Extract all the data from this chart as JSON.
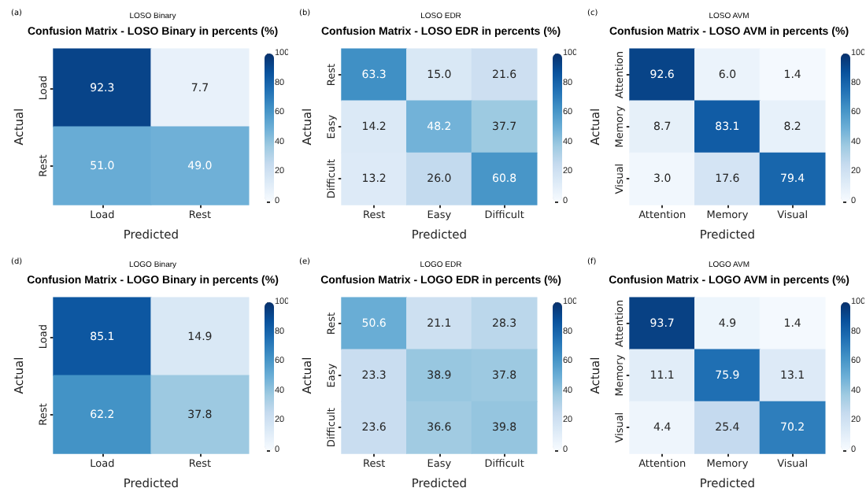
{
  "chart_data": [
    {
      "type": "heatmap",
      "title": "Confusion Matrix - LOSO Binary in percents (%)",
      "subtitle": "LOSO Binary",
      "annotations": [
        "(a)"
      ],
      "xlabel": "Predicted",
      "ylabel": "Actual",
      "categories": [
        "Load",
        "Rest"
      ],
      "y_categories": [
        "Load",
        "Rest"
      ],
      "cells": [
        [
          92.3,
          7.7
        ],
        [
          51.0,
          49.0
        ]
      ],
      "cell_labels": [
        [
          "92.3",
          "7.7"
        ],
        [
          "51.0",
          "49.0"
        ]
      ],
      "data_labels": true,
      "clim": [
        0,
        100
      ],
      "cticks": [
        0,
        20,
        40,
        60,
        80,
        100
      ],
      "grid": false
    },
    {
      "type": "heatmap",
      "title": "Confusion Matrix - LOSO EDR in percents (%)",
      "subtitle": "LOSO EDR",
      "annotations": [
        "(b)"
      ],
      "xlabel": "Predicted",
      "ylabel": "Actual",
      "categories": [
        "Rest",
        "Easy",
        "Difficult"
      ],
      "y_categories": [
        "Rest",
        "Easy",
        "Difficult"
      ],
      "cells": [
        [
          63.3,
          15.0,
          21.6
        ],
        [
          14.2,
          48.2,
          37.7
        ],
        [
          13.2,
          26.0,
          60.8
        ]
      ],
      "cell_labels": [
        [
          "63.3",
          "15.0",
          "21.6"
        ],
        [
          "14.2",
          "48.2",
          "37.7"
        ],
        [
          "13.2",
          "26.0",
          "60.8"
        ]
      ],
      "data_labels": true,
      "clim": [
        0,
        100
      ],
      "cticks": [
        0,
        20,
        40,
        60,
        80,
        100
      ],
      "grid": false
    },
    {
      "type": "heatmap",
      "title": "Confusion Matrix - LOSO AVM in percents (%)",
      "subtitle": "LOSO AVM",
      "annotations": [
        "(c)"
      ],
      "xlabel": "Predicted",
      "ylabel": "Actual",
      "categories": [
        "Attention",
        "Memory",
        "Visual"
      ],
      "y_categories": [
        "Attention",
        "Memory",
        "Visual"
      ],
      "cells": [
        [
          92.6,
          6.0,
          1.4
        ],
        [
          8.7,
          83.1,
          8.2
        ],
        [
          3.0,
          17.6,
          79.4
        ]
      ],
      "cell_labels": [
        [
          "92.6",
          "6.0",
          "1.4"
        ],
        [
          "8.7",
          "83.1",
          "8.2"
        ],
        [
          "3.0",
          "17.6",
          "79.4"
        ]
      ],
      "data_labels": true,
      "clim": [
        0,
        100
      ],
      "cticks": [
        0,
        20,
        40,
        60,
        80,
        100
      ],
      "grid": false
    },
    {
      "type": "heatmap",
      "title": "Confusion Matrix - LOGO Binary in percents (%)",
      "subtitle": "LOGO Binary",
      "annotations": [
        "(d)"
      ],
      "xlabel": "Predicted",
      "ylabel": "Actual",
      "categories": [
        "Load",
        "Rest"
      ],
      "y_categories": [
        "Load",
        "Rest"
      ],
      "cells": [
        [
          85.1,
          14.9
        ],
        [
          62.2,
          37.8
        ]
      ],
      "cell_labels": [
        [
          "85.1",
          "14.9"
        ],
        [
          "62.2",
          "37.8"
        ]
      ],
      "data_labels": true,
      "clim": [
        0,
        100
      ],
      "cticks": [
        0,
        20,
        40,
        60,
        80,
        100
      ],
      "grid": false
    },
    {
      "type": "heatmap",
      "title": "Confusion Matrix - LOGO EDR in percents (%)",
      "subtitle": "LOGO EDR",
      "annotations": [
        "(e)"
      ],
      "xlabel": "Predicted",
      "ylabel": "Actual",
      "categories": [
        "Rest",
        "Easy",
        "Difficult"
      ],
      "y_categories": [
        "Rest",
        "Easy",
        "Difficult"
      ],
      "cells": [
        [
          50.6,
          21.1,
          28.3
        ],
        [
          23.3,
          38.9,
          37.8
        ],
        [
          23.6,
          36.6,
          39.8
        ]
      ],
      "cell_labels": [
        [
          "50.6",
          "21.1",
          "28.3"
        ],
        [
          "23.3",
          "38.9",
          "37.8"
        ],
        [
          "23.6",
          "36.6",
          "39.8"
        ]
      ],
      "data_labels": true,
      "clim": [
        0,
        100
      ],
      "cticks": [
        0,
        20,
        40,
        60,
        80,
        100
      ],
      "grid": false
    },
    {
      "type": "heatmap",
      "title": "Confusion Matrix - LOGO AVM in percents (%)",
      "subtitle": "LOGO AVM",
      "annotations": [
        "(f)"
      ],
      "xlabel": "Predicted",
      "ylabel": "Actual",
      "categories": [
        "Attention",
        "Memory",
        "Visual"
      ],
      "y_categories": [
        "Attention",
        "Memory",
        "Visual"
      ],
      "cells": [
        [
          93.7,
          4.9,
          1.4
        ],
        [
          11.1,
          75.9,
          13.1
        ],
        [
          4.4,
          25.4,
          70.2
        ]
      ],
      "cell_labels": [
        [
          "93.7",
          "4.9",
          "1.4"
        ],
        [
          "11.1",
          "75.9",
          "13.1"
        ],
        [
          "4.4",
          "25.4",
          "70.2"
        ]
      ],
      "data_labels": true,
      "clim": [
        0,
        100
      ],
      "cticks": [
        0,
        20,
        40,
        60,
        80,
        100
      ],
      "grid": false
    }
  ]
}
